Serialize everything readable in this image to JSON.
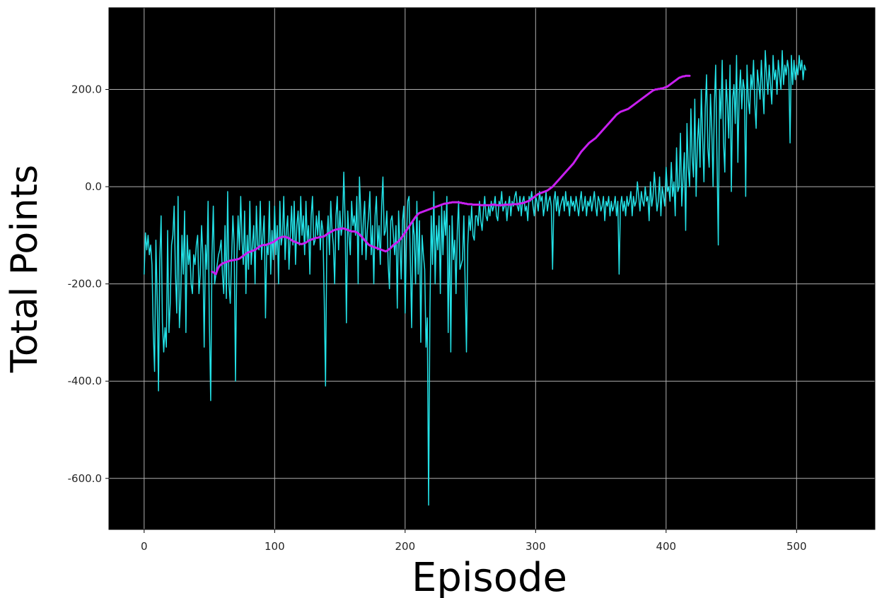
{
  "chart_data": {
    "type": "line",
    "title": "",
    "xlabel": "Episode",
    "ylabel": "Total Points",
    "xlim": [
      -27,
      560
    ],
    "ylim": [
      -705,
      368
    ],
    "x_ticks": [
      0,
      100,
      200,
      300,
      400,
      500
    ],
    "y_ticks": [
      -600,
      -400,
      -200,
      0,
      200
    ],
    "x_tick_labels": [
      "0",
      "100",
      "200",
      "300",
      "400",
      "500"
    ],
    "y_tick_labels": [
      "-600.0",
      "-400.0",
      "-200.0",
      "0.0",
      "200.0"
    ],
    "grid": true,
    "plot_background": "#000000",
    "series": [
      {
        "color": "#23e1e6",
        "x_start": 0,
        "values": [
          -180,
          -95,
          -130,
          -100,
          -140,
          -120,
          -160,
          -300,
          -380,
          -110,
          -230,
          -420,
          -150,
          -60,
          -280,
          -340,
          -290,
          -330,
          -90,
          -300,
          -240,
          -120,
          -100,
          -40,
          -180,
          -260,
          -20,
          -290,
          -230,
          -100,
          -180,
          -50,
          -300,
          -100,
          -160,
          -130,
          -200,
          -220,
          -140,
          -160,
          -120,
          -100,
          -220,
          -180,
          -80,
          -140,
          -330,
          -120,
          -170,
          -30,
          -280,
          -440,
          -140,
          -40,
          -200,
          -180,
          -160,
          -140,
          -130,
          -110,
          -180,
          -220,
          -80,
          -230,
          -10,
          -200,
          -240,
          -150,
          -60,
          -120,
          -400,
          -150,
          -60,
          -130,
          -20,
          -110,
          -160,
          -50,
          -220,
          -100,
          -170,
          -30,
          -160,
          -120,
          -80,
          -200,
          -40,
          -120,
          -130,
          -30,
          -150,
          -100,
          -60,
          -270,
          -120,
          -140,
          -30,
          -180,
          -90,
          -150,
          -40,
          -140,
          -80,
          -200,
          -30,
          -120,
          -100,
          -20,
          -150,
          -90,
          -60,
          -170,
          -100,
          -40,
          -120,
          -30,
          -160,
          -80,
          -50,
          -120,
          -20,
          -100,
          -60,
          -140,
          -30,
          -110,
          -80,
          -180,
          -60,
          -20,
          -120,
          -110,
          -60,
          -100,
          -50,
          -130,
          -70,
          -90,
          -230,
          -410,
          -110,
          -60,
          -140,
          -30,
          -90,
          -120,
          -200,
          -60,
          -20,
          -130,
          -50,
          -100,
          -80,
          30,
          -70,
          -280,
          -50,
          -100,
          -140,
          -30,
          -80,
          -60,
          -100,
          -20,
          -200,
          20,
          -50,
          -140,
          -70,
          -30,
          -150,
          -90,
          -60,
          -10,
          -140,
          -80,
          -200,
          -60,
          -20,
          -130,
          -80,
          -160,
          -40,
          20,
          -100,
          -90,
          -50,
          -160,
          -210,
          -70,
          -60,
          -100,
          -140,
          -80,
          -250,
          -50,
          -120,
          -190,
          -70,
          -40,
          -260,
          -110,
          -30,
          -20,
          -150,
          -290,
          -70,
          -100,
          -200,
          -30,
          -180,
          -70,
          -320,
          -100,
          -140,
          -170,
          -330,
          -270,
          -655,
          -260,
          -60,
          -160,
          -10,
          -200,
          -80,
          -130,
          -60,
          -220,
          -40,
          -140,
          -50,
          -100,
          -20,
          -300,
          -80,
          -340,
          -60,
          -150,
          -110,
          -220,
          -90,
          -30,
          -170,
          -160,
          -150,
          -60,
          -200,
          -340,
          -120,
          -60,
          -90,
          -40,
          -100,
          -110,
          -60,
          -60,
          -80,
          -30,
          -70,
          -90,
          -50,
          -20,
          -60,
          -70,
          -40,
          -60,
          -30,
          -50,
          -40,
          -20,
          -60,
          -70,
          -30,
          -40,
          -10,
          -50,
          -40,
          -30,
          -70,
          -40,
          -20,
          -60,
          -30,
          -40,
          -20,
          -10,
          -40,
          -50,
          -20,
          -60,
          -30,
          -20,
          -50,
          -40,
          -70,
          -20,
          -30,
          -10,
          -40,
          -60,
          -20,
          -30,
          -50,
          -10,
          -30,
          -20,
          -60,
          -40,
          -10,
          -50,
          -30,
          -20,
          -40,
          -170,
          -30,
          -10,
          -50,
          -20,
          -60,
          -40,
          -30,
          -20,
          -50,
          -10,
          -40,
          -30,
          -60,
          -20,
          -40,
          -30,
          -50,
          -20,
          -40,
          -60,
          -30,
          -10,
          -50,
          -40,
          -20,
          -60,
          -30,
          -40,
          -20,
          -50,
          -30,
          -10,
          -40,
          -60,
          -20,
          -30,
          -50,
          -40,
          -20,
          -70,
          -30,
          -40,
          -20,
          -60,
          -30,
          -50,
          -40,
          -20,
          -60,
          -30,
          -180,
          -40,
          -20,
          -50,
          -30,
          -60,
          -20,
          -40,
          -30,
          -10,
          -60,
          -20,
          -40,
          -30,
          10,
          -20,
          -50,
          -10,
          -30,
          -40,
          0,
          -30,
          -20,
          -70,
          10,
          -40,
          -20,
          30,
          -10,
          -50,
          -30,
          20,
          -60,
          0,
          -20,
          -40,
          40,
          -10,
          0,
          -30,
          50,
          -20,
          10,
          -60,
          80,
          -10,
          0,
          110,
          -40,
          20,
          70,
          -90,
          130,
          40,
          0,
          160,
          60,
          20,
          180,
          -20,
          90,
          140,
          40,
          200,
          100,
          10,
          160,
          230,
          80,
          40,
          190,
          120,
          0,
          170,
          250,
          60,
          -120,
          200,
          140,
          260,
          90,
          30,
          220,
          170,
          100,
          250,
          -10,
          180,
          210,
          130,
          270,
          50,
          190,
          240,
          160,
          220,
          200,
          -20,
          250,
          180,
          150,
          230,
          200,
          260,
          170,
          120,
          240,
          210,
          180,
          260,
          200,
          150,
          280,
          230,
          190,
          250,
          210,
          170,
          270,
          220,
          240,
          190,
          260,
          230,
          200,
          280,
          210,
          250,
          230,
          260,
          240,
          90,
          270,
          210,
          260,
          220,
          250,
          230,
          270,
          240,
          260,
          220,
          250,
          240
        ]
      },
      {
        "color": "#c81ff0",
        "x_start": 52,
        "values": [
          -175,
          -176,
          -178,
          -180,
          -172,
          -166,
          -162,
          -160,
          -158,
          -157,
          -156,
          -155,
          -154,
          -153,
          -152,
          -152,
          -151,
          -151,
          -150,
          -150,
          -149,
          -148,
          -146,
          -144,
          -142,
          -140,
          -138,
          -136,
          -135,
          -134,
          -133,
          -132,
          -131,
          -130,
          -128,
          -126,
          -124,
          -122,
          -121,
          -120,
          -120,
          -120,
          -119,
          -118,
          -117,
          -116,
          -115,
          -114,
          -112,
          -110,
          -108,
          -106,
          -105,
          -104,
          -103,
          -103,
          -103,
          -104,
          -105,
          -106,
          -108,
          -110,
          -112,
          -113,
          -114,
          -115,
          -116,
          -117,
          -118,
          -118,
          -117,
          -116,
          -115,
          -113,
          -111,
          -110,
          -109,
          -108,
          -107,
          -106,
          -105,
          -105,
          -104,
          -104,
          -103,
          -103,
          -102,
          -100,
          -98,
          -96,
          -95,
          -93,
          -92,
          -90,
          -89,
          -88,
          -88,
          -87,
          -87,
          -86,
          -86,
          -86,
          -87,
          -88,
          -89,
          -90,
          -91,
          -92,
          -92,
          -92,
          -93,
          -94,
          -96,
          -98,
          -101,
          -104,
          -107,
          -110,
          -113,
          -116,
          -119,
          -121,
          -122,
          -123,
          -124,
          -125,
          -126,
          -127,
          -128,
          -129,
          -130,
          -131,
          -132,
          -133,
          -132,
          -130,
          -128,
          -126,
          -123,
          -120,
          -118,
          -116,
          -114,
          -112,
          -109,
          -106,
          -102,
          -98,
          -94,
          -90,
          -86,
          -82,
          -78,
          -74,
          -70,
          -66,
          -62,
          -59,
          -56,
          -54,
          -53,
          -52,
          -51,
          -50,
          -49,
          -48,
          -47,
          -46,
          -45,
          -44,
          -43,
          -42,
          -41,
          -40,
          -39,
          -38,
          -37,
          -36,
          -35,
          -35,
          -34,
          -34,
          -33,
          -33,
          -32,
          -32,
          -32,
          -32,
          -32,
          -32,
          -33,
          -33,
          -34,
          -34,
          -35,
          -35,
          -36,
          -36,
          -36,
          -36,
          -37,
          -37,
          -37,
          -37,
          -37,
          -37,
          -38,
          -38,
          -38,
          -38,
          -38,
          -38,
          -38,
          -38,
          -37,
          -37,
          -37,
          -37,
          -38,
          -38,
          -38,
          -38,
          -38,
          -38,
          -37,
          -37,
          -37,
          -37,
          -37,
          -37,
          -36,
          -36,
          -36,
          -36,
          -36,
          -35,
          -35,
          -34,
          -34,
          -33,
          -32,
          -31,
          -30,
          -29,
          -27,
          -25,
          -23,
          -21,
          -19,
          -17,
          -15,
          -14,
          -13,
          -12,
          -11,
          -10,
          -9,
          -8,
          -6,
          -4,
          -2,
          0,
          3,
          6,
          9,
          12,
          15,
          18,
          21,
          24,
          27,
          30,
          33,
          36,
          39,
          42,
          45,
          48,
          52,
          56,
          60,
          64,
          68,
          72,
          75,
          78,
          81,
          84,
          87,
          90,
          92,
          94,
          96,
          98,
          100,
          103,
          106,
          109,
          112,
          115,
          118,
          121,
          124,
          127,
          130,
          133,
          136,
          139,
          142,
          145,
          148,
          150,
          152,
          154,
          155,
          156,
          157,
          158,
          159,
          160,
          162,
          164,
          166,
          168,
          170,
          172,
          174,
          176,
          178,
          180,
          182,
          184,
          186,
          188,
          190,
          192,
          194,
          196,
          198,
          199,
          200,
          200,
          201,
          201,
          202,
          202,
          203,
          204,
          205,
          206,
          208,
          210,
          212,
          214,
          216,
          218,
          220,
          222,
          224,
          225,
          226,
          227,
          227,
          228,
          228,
          228,
          228
        ]
      }
    ]
  }
}
